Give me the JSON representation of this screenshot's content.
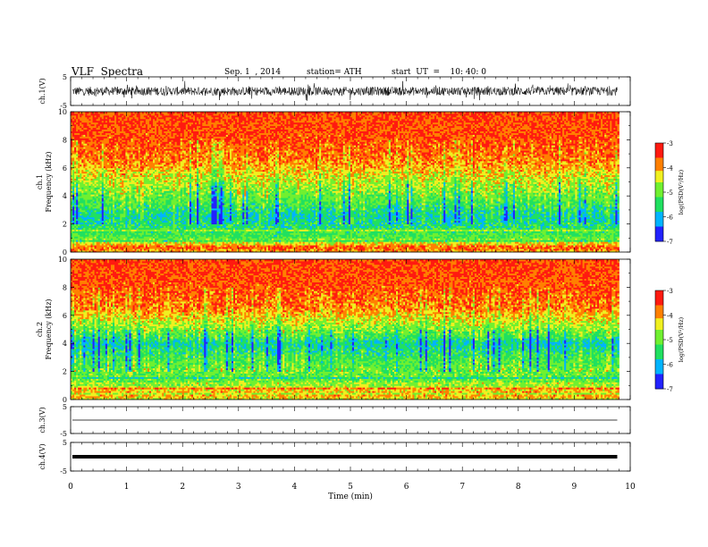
{
  "header": {
    "title": "VLF  Spectra",
    "date": "Sep. 1  , 2014",
    "station": "station= ATH",
    "start": "start  UT  =    10: 40: 0"
  },
  "chart_data": {
    "type": "heatmap",
    "xlabel": "Time  (min)",
    "xlim": [
      0,
      10
    ],
    "x_ticks": [
      "0",
      "1",
      "2",
      "3",
      "4",
      "5",
      "6",
      "7",
      "8",
      "9",
      "10"
    ],
    "data_end_min": 9.8,
    "panels": [
      {
        "id": "ch1_waveform",
        "type": "line",
        "ylabel": "ch.1(V)",
        "ylim": [
          -5,
          5
        ],
        "y_ticks": [
          "5",
          "-5"
        ],
        "signal": "noise",
        "amplitude_V": 1.5
      },
      {
        "id": "ch1_spectrogram",
        "type": "heatmap",
        "ylabel": "ch.1\nFrequency  (kHz)",
        "ylim": [
          0,
          10
        ],
        "y_ticks": [
          "0",
          "2",
          "4",
          "6",
          "8",
          "10"
        ],
        "colorbar": {
          "label": "log(PSD(V²/Hz)",
          "range": [
            -7,
            -3
          ],
          "ticks": [
            "-3",
            "-4",
            "-5",
            "-6",
            "-7"
          ]
        },
        "levels_by_freq_kHz": [
          {
            "f": 0.0,
            "logPSD": -4.2
          },
          {
            "f": 0.3,
            "logPSD": -3.6
          },
          {
            "f": 1.0,
            "logPSD": -5.1
          },
          {
            "f": 1.8,
            "logPSD": -5.5
          },
          {
            "f": 2.5,
            "logPSD": -5.8
          },
          {
            "f": 3.5,
            "logPSD": -5.3
          },
          {
            "f": 5.0,
            "logPSD": -4.6
          },
          {
            "f": 6.5,
            "logPSD": -3.9
          },
          {
            "f": 8.0,
            "logPSD": -3.6
          },
          {
            "f": 10.0,
            "logPSD": -3.5
          }
        ]
      },
      {
        "id": "ch2_spectrogram",
        "type": "heatmap",
        "ylabel": "ch.2\nFrequency  (kHz)",
        "ylim": [
          0,
          10
        ],
        "y_ticks": [
          "0",
          "2",
          "4",
          "6",
          "8",
          "10"
        ],
        "colorbar": {
          "label": "log(PSD(V²/Hz)",
          "range": [
            -7,
            -3
          ],
          "ticks": [
            "-3",
            "-4",
            "-5",
            "-6",
            "-7"
          ]
        },
        "levels_by_freq_kHz": [
          {
            "f": 0.0,
            "logPSD": -4.3
          },
          {
            "f": 0.5,
            "logPSD": -4.0
          },
          {
            "f": 1.2,
            "logPSD": -5.0
          },
          {
            "f": 2.0,
            "logPSD": -5.0
          },
          {
            "f": 3.0,
            "logPSD": -5.3
          },
          {
            "f": 4.0,
            "logPSD": -5.8
          },
          {
            "f": 5.0,
            "logPSD": -4.9
          },
          {
            "f": 6.5,
            "logPSD": -3.9
          },
          {
            "f": 8.0,
            "logPSD": -3.6
          },
          {
            "f": 10.0,
            "logPSD": -3.5
          }
        ]
      },
      {
        "id": "ch3_waveform",
        "type": "line",
        "ylabel": "ch.3(V)",
        "ylim": [
          -5,
          5
        ],
        "y_ticks": [
          "5",
          "-5"
        ],
        "signal": "flat",
        "level_V": 0
      },
      {
        "id": "ch4_waveform",
        "type": "line",
        "ylabel": "ch.4(V)",
        "ylim": [
          -5,
          5
        ],
        "y_ticks": [
          "5",
          "-5"
        ],
        "signal": "thick-flat",
        "level_V": 0
      }
    ]
  }
}
